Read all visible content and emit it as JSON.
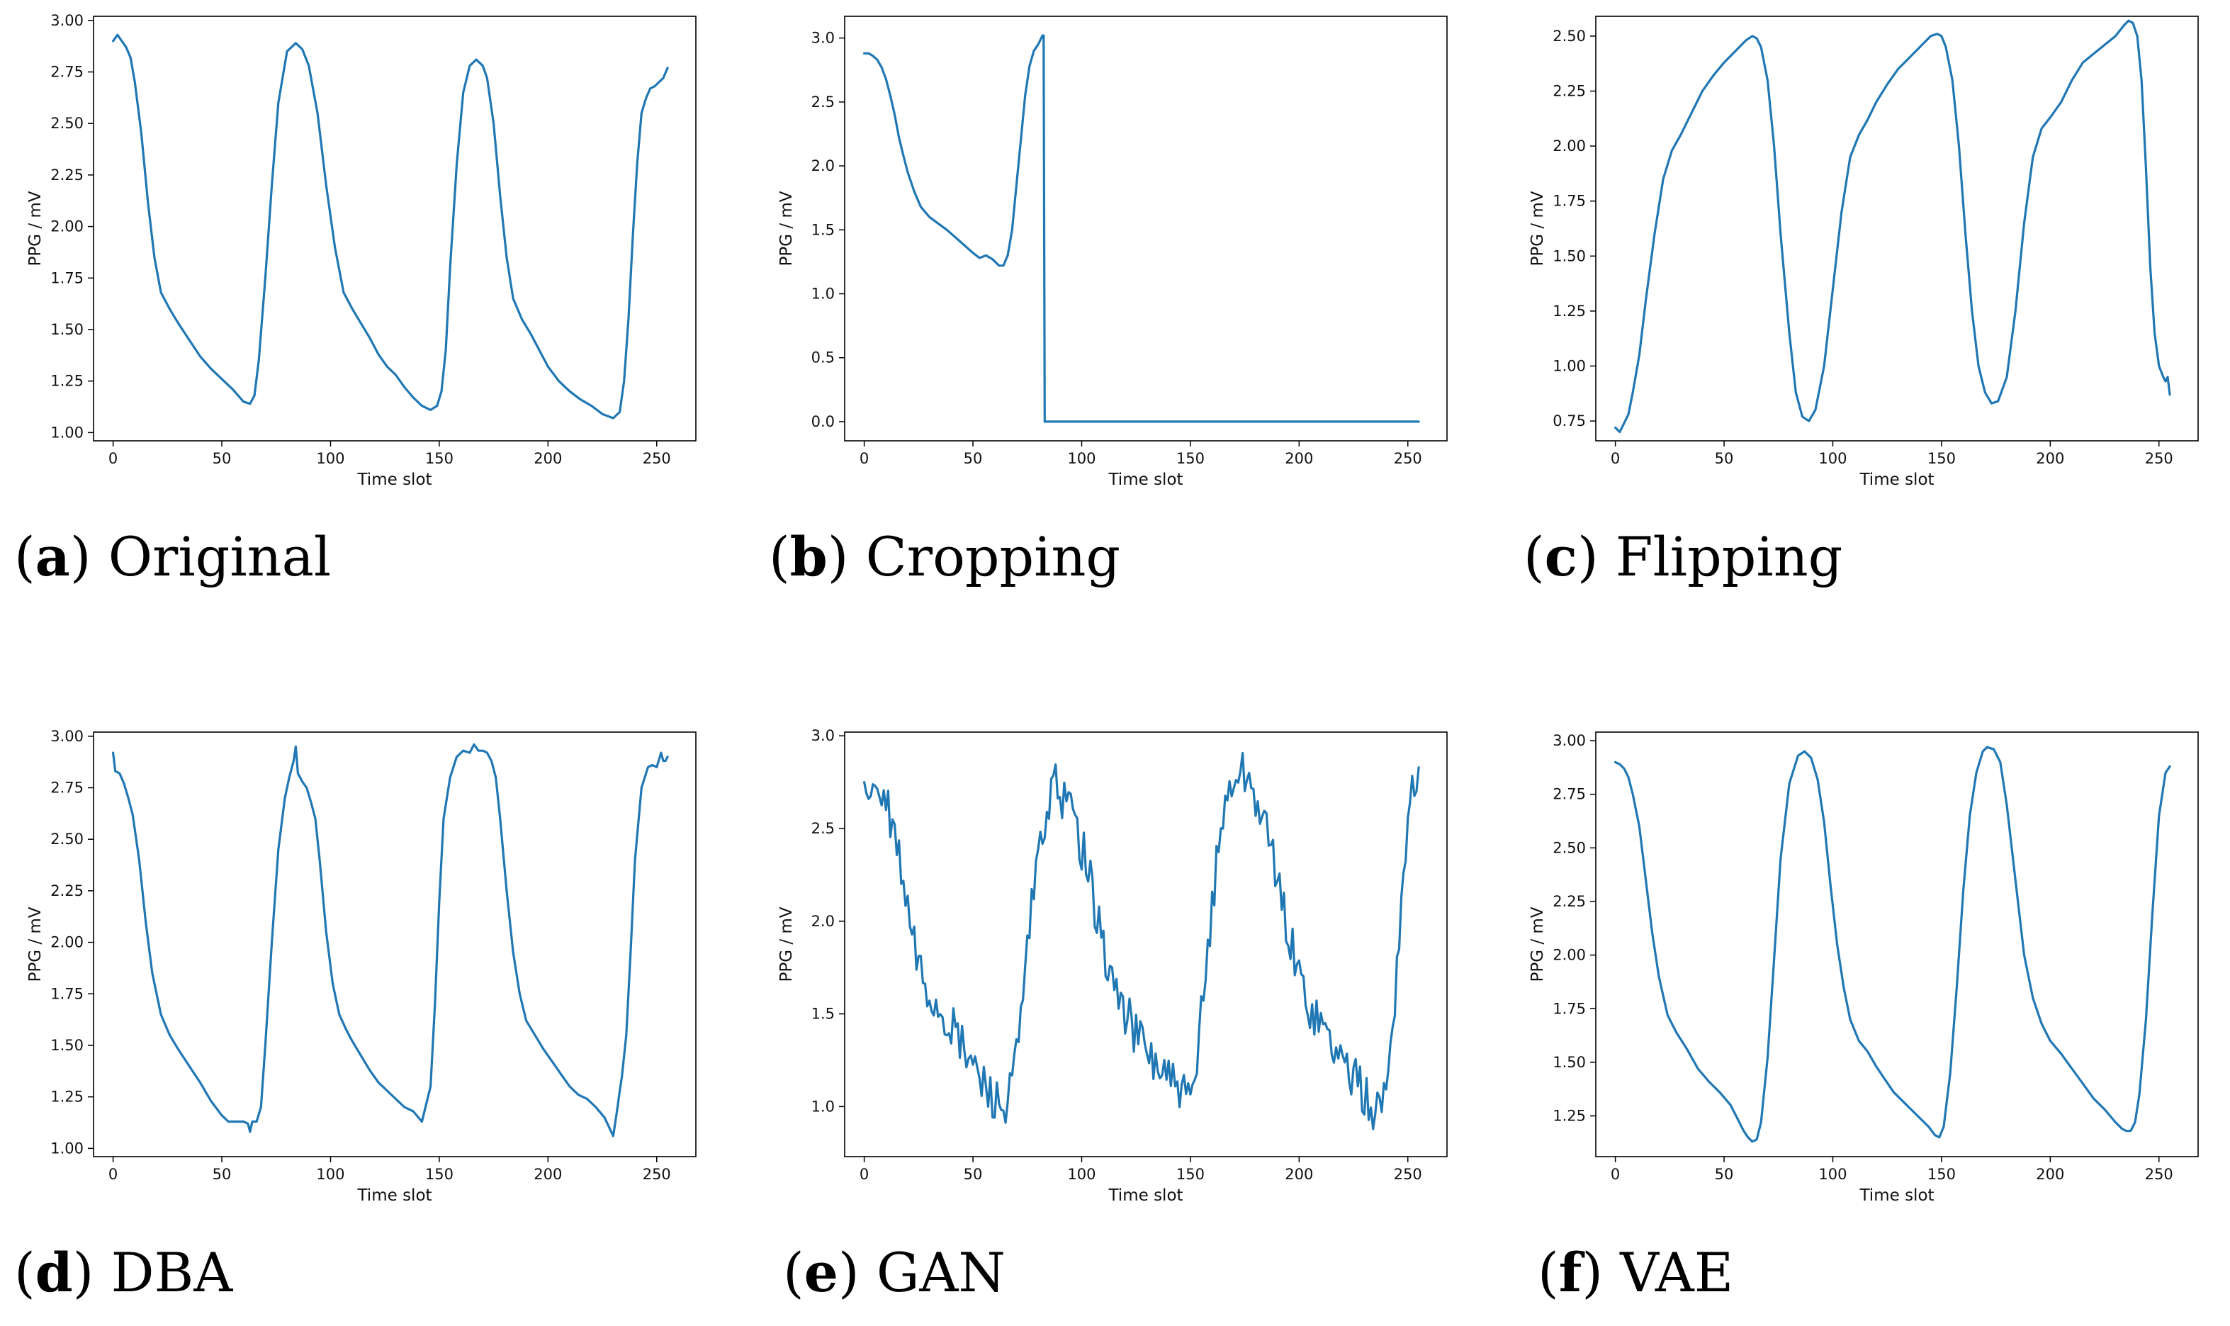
{
  "figure": {
    "series_color": "#1f77b4",
    "panels": [
      {
        "id": "a",
        "caption_letter": "a",
        "caption_text": "Original"
      },
      {
        "id": "b",
        "caption_letter": "b",
        "caption_text": "Cropping"
      },
      {
        "id": "c",
        "caption_letter": "c",
        "caption_text": "Flipping"
      },
      {
        "id": "d",
        "caption_letter": "d",
        "caption_text": "DBA"
      },
      {
        "id": "e",
        "caption_letter": "e",
        "caption_text": "GAN"
      },
      {
        "id": "f",
        "caption_letter": "f",
        "caption_text": "VAE"
      }
    ]
  },
  "chart_data": [
    {
      "id": "a",
      "type": "line",
      "title": "",
      "xlabel": "Time slot",
      "ylabel": "PPG / mV",
      "xlim": [
        -9,
        268
      ],
      "ylim": [
        0.96,
        3.02
      ],
      "xticks": [
        0,
        50,
        100,
        150,
        200,
        250
      ],
      "yticks": [
        1.0,
        1.25,
        1.5,
        1.75,
        2.0,
        2.25,
        2.5,
        2.75,
        3.0
      ],
      "ytick_labels": [
        "1.00",
        "1.25",
        "1.50",
        "1.75",
        "2.00",
        "2.25",
        "2.50",
        "2.75",
        "3.00"
      ],
      "noise": 0,
      "series": [
        {
          "name": "PPG",
          "x": [
            0,
            2,
            4,
            6,
            8,
            10,
            13,
            16,
            19,
            22,
            26,
            30,
            35,
            40,
            45,
            50,
            55,
            60,
            63,
            65,
            67,
            70,
            73,
            76,
            80,
            84,
            87,
            90,
            94,
            98,
            102,
            106,
            110,
            114,
            118,
            122,
            126,
            130,
            134,
            138,
            142,
            146,
            149,
            151,
            153,
            155,
            158,
            161,
            164,
            167,
            170,
            172,
            175,
            178,
            181,
            184,
            188,
            192,
            196,
            200,
            205,
            210,
            215,
            220,
            225,
            230,
            233,
            235,
            237,
            239,
            241,
            243,
            245,
            247,
            249,
            251,
            253,
            255
          ],
          "y": [
            2.9,
            2.93,
            2.9,
            2.87,
            2.82,
            2.7,
            2.45,
            2.12,
            1.85,
            1.68,
            1.6,
            1.53,
            1.45,
            1.37,
            1.31,
            1.26,
            1.21,
            1.15,
            1.14,
            1.18,
            1.35,
            1.75,
            2.2,
            2.6,
            2.85,
            2.89,
            2.86,
            2.78,
            2.55,
            2.2,
            1.9,
            1.68,
            1.6,
            1.53,
            1.46,
            1.38,
            1.32,
            1.28,
            1.22,
            1.17,
            1.13,
            1.11,
            1.13,
            1.2,
            1.4,
            1.8,
            2.3,
            2.65,
            2.78,
            2.81,
            2.78,
            2.72,
            2.5,
            2.15,
            1.85,
            1.65,
            1.55,
            1.48,
            1.4,
            1.32,
            1.25,
            1.2,
            1.16,
            1.13,
            1.09,
            1.07,
            1.1,
            1.25,
            1.55,
            1.95,
            2.3,
            2.55,
            2.62,
            2.67,
            2.68,
            2.7,
            2.72,
            2.77
          ]
        }
      ]
    },
    {
      "id": "b",
      "type": "line",
      "title": "",
      "xlabel": "Time slot",
      "ylabel": "PPG / mV",
      "xlim": [
        -9,
        268
      ],
      "ylim": [
        -0.15,
        3.17
      ],
      "xticks": [
        0,
        50,
        100,
        150,
        200,
        250
      ],
      "yticks": [
        0.0,
        0.5,
        1.0,
        1.5,
        2.0,
        2.5,
        3.0
      ],
      "ytick_labels": [
        "0.0",
        "0.5",
        "1.0",
        "1.5",
        "2.0",
        "2.5",
        "3.0"
      ],
      "noise": 0,
      "series": [
        {
          "name": "PPG",
          "x": [
            0,
            2,
            4,
            6,
            8,
            10,
            12,
            14,
            16,
            18,
            20,
            23,
            26,
            30,
            34,
            38,
            42,
            46,
            50,
            53,
            56,
            59,
            62,
            64,
            66,
            68,
            70,
            72,
            74,
            76,
            78,
            80,
            82,
            82.5,
            83,
            85,
            100,
            150,
            200,
            255
          ],
          "y": [
            2.88,
            2.88,
            2.86,
            2.83,
            2.77,
            2.68,
            2.55,
            2.4,
            2.22,
            2.08,
            1.95,
            1.8,
            1.68,
            1.6,
            1.55,
            1.5,
            1.44,
            1.38,
            1.32,
            1.28,
            1.3,
            1.27,
            1.22,
            1.22,
            1.3,
            1.5,
            1.85,
            2.2,
            2.55,
            2.78,
            2.9,
            2.95,
            3.02,
            3.02,
            0.0,
            0.0,
            0.0,
            0.0,
            0.0,
            0.0
          ]
        }
      ]
    },
    {
      "id": "c",
      "type": "line",
      "title": "",
      "xlabel": "Time slot",
      "ylabel": "PPG / mV",
      "xlim": [
        -9,
        268
      ],
      "ylim": [
        0.66,
        2.59
      ],
      "xticks": [
        0,
        50,
        100,
        150,
        200,
        250
      ],
      "yticks": [
        0.75,
        1.0,
        1.25,
        1.5,
        1.75,
        2.0,
        2.25,
        2.5
      ],
      "ytick_labels": [
        "0.75",
        "1.00",
        "1.25",
        "1.50",
        "1.75",
        "2.00",
        "2.25",
        "2.50"
      ],
      "noise": 0,
      "series": [
        {
          "name": "PPG",
          "x": [
            0,
            2,
            4,
            6,
            8,
            11,
            14,
            18,
            22,
            26,
            30,
            35,
            40,
            45,
            50,
            55,
            60,
            63,
            65,
            67,
            70,
            73,
            76,
            80,
            83,
            86,
            89,
            92,
            96,
            100,
            104,
            108,
            112,
            116,
            120,
            125,
            130,
            135,
            140,
            145,
            148,
            150,
            152,
            155,
            158,
            161,
            164,
            167,
            170,
            173,
            176,
            180,
            184,
            188,
            192,
            196,
            200,
            205,
            210,
            215,
            220,
            225,
            230,
            234,
            236,
            238,
            240,
            242,
            244,
            246,
            248,
            250,
            252,
            253,
            254,
            255
          ],
          "y": [
            0.72,
            0.7,
            0.74,
            0.78,
            0.88,
            1.05,
            1.3,
            1.6,
            1.85,
            1.98,
            2.05,
            2.15,
            2.25,
            2.32,
            2.38,
            2.43,
            2.48,
            2.5,
            2.49,
            2.45,
            2.3,
            2.0,
            1.6,
            1.15,
            0.88,
            0.77,
            0.75,
            0.8,
            1.0,
            1.35,
            1.7,
            1.95,
            2.05,
            2.12,
            2.2,
            2.28,
            2.35,
            2.4,
            2.45,
            2.5,
            2.51,
            2.5,
            2.45,
            2.3,
            2.0,
            1.6,
            1.25,
            1.0,
            0.88,
            0.83,
            0.84,
            0.95,
            1.25,
            1.65,
            1.95,
            2.08,
            2.13,
            2.2,
            2.3,
            2.38,
            2.42,
            2.46,
            2.5,
            2.55,
            2.57,
            2.56,
            2.5,
            2.3,
            1.9,
            1.45,
            1.15,
            1.0,
            0.95,
            0.93,
            0.95,
            0.87
          ]
        }
      ]
    },
    {
      "id": "d",
      "type": "line",
      "title": "",
      "xlabel": "Time slot",
      "ylabel": "PPG / mV",
      "xlim": [
        -9,
        268
      ],
      "ylim": [
        0.96,
        3.02
      ],
      "xticks": [
        0,
        50,
        100,
        150,
        200,
        250
      ],
      "yticks": [
        1.0,
        1.25,
        1.5,
        1.75,
        2.0,
        2.25,
        2.5,
        2.75,
        3.0
      ],
      "ytick_labels": [
        "1.00",
        "1.25",
        "1.50",
        "1.75",
        "2.00",
        "2.25",
        "2.50",
        "2.75",
        "3.00"
      ],
      "noise": 0,
      "series": [
        {
          "name": "PPG",
          "x": [
            0,
            1,
            3,
            5,
            7,
            9,
            12,
            15,
            18,
            22,
            26,
            30,
            35,
            40,
            45,
            50,
            53,
            56,
            58,
            60,
            62,
            63,
            64,
            66,
            68,
            70,
            73,
            76,
            79,
            81,
            83,
            84,
            85,
            87,
            89,
            91,
            93,
            95,
            98,
            101,
            104,
            107,
            110,
            114,
            118,
            122,
            126,
            130,
            134,
            138,
            142,
            146,
            148,
            150,
            152,
            155,
            158,
            161,
            164,
            166,
            168,
            170,
            172,
            174,
            176,
            178,
            181,
            184,
            187,
            190,
            194,
            198,
            202,
            206,
            210,
            214,
            218,
            222,
            226,
            230,
            232,
            233,
            234,
            236,
            238,
            240,
            243,
            246,
            248,
            250,
            252,
            253,
            254,
            255
          ],
          "y": [
            2.92,
            2.83,
            2.82,
            2.77,
            2.7,
            2.62,
            2.4,
            2.1,
            1.85,
            1.65,
            1.55,
            1.48,
            1.4,
            1.32,
            1.23,
            1.16,
            1.13,
            1.13,
            1.13,
            1.13,
            1.12,
            1.08,
            1.13,
            1.13,
            1.2,
            1.5,
            2.0,
            2.45,
            2.7,
            2.8,
            2.88,
            2.95,
            2.82,
            2.78,
            2.75,
            2.68,
            2.6,
            2.4,
            2.05,
            1.8,
            1.65,
            1.58,
            1.52,
            1.45,
            1.38,
            1.32,
            1.28,
            1.24,
            1.2,
            1.18,
            1.13,
            1.3,
            1.7,
            2.2,
            2.6,
            2.8,
            2.9,
            2.93,
            2.92,
            2.96,
            2.93,
            2.93,
            2.92,
            2.88,
            2.8,
            2.6,
            2.25,
            1.95,
            1.75,
            1.62,
            1.55,
            1.48,
            1.42,
            1.36,
            1.3,
            1.26,
            1.24,
            1.2,
            1.15,
            1.06,
            1.2,
            1.28,
            1.35,
            1.55,
            1.95,
            2.4,
            2.75,
            2.85,
            2.86,
            2.85,
            2.92,
            2.88,
            2.88,
            2.9
          ]
        }
      ]
    },
    {
      "id": "e",
      "type": "line",
      "title": "",
      "xlabel": "Time slot",
      "ylabel": "PPG / mV",
      "xlim": [
        -9,
        268
      ],
      "ylim": [
        0.73,
        3.02
      ],
      "xticks": [
        0,
        50,
        100,
        150,
        200,
        250
      ],
      "yticks": [
        1.0,
        1.5,
        2.0,
        2.5,
        3.0
      ],
      "ytick_labels": [
        "1.0",
        "1.5",
        "2.0",
        "2.5",
        "3.0"
      ],
      "noise": 0.13,
      "series": [
        {
          "name": "PPG",
          "x": [
            0,
            5,
            10,
            15,
            20,
            25,
            30,
            35,
            40,
            45,
            50,
            55,
            60,
            65,
            68,
            72,
            76,
            80,
            84,
            88,
            92,
            96,
            100,
            105,
            110,
            115,
            120,
            125,
            130,
            135,
            140,
            145,
            150,
            153,
            156,
            160,
            164,
            168,
            172,
            176,
            180,
            185,
            190,
            195,
            200,
            205,
            210,
            215,
            220,
            225,
            230,
            235,
            238,
            241,
            244,
            247,
            250,
            253,
            255
          ],
          "y": [
            2.7,
            2.68,
            2.62,
            2.4,
            2.05,
            1.75,
            1.6,
            1.52,
            1.42,
            1.32,
            1.22,
            1.12,
            1.05,
            0.98,
            1.1,
            1.45,
            1.95,
            2.35,
            2.6,
            2.72,
            2.66,
            2.58,
            2.4,
            2.15,
            1.85,
            1.65,
            1.5,
            1.4,
            1.3,
            1.22,
            1.15,
            1.08,
            1.0,
            1.2,
            1.6,
            2.1,
            2.5,
            2.72,
            2.82,
            2.78,
            2.68,
            2.48,
            2.2,
            1.95,
            1.7,
            1.55,
            1.45,
            1.35,
            1.25,
            1.15,
            1.05,
            0.98,
            1.0,
            1.2,
            1.6,
            2.1,
            2.55,
            2.75,
            2.8
          ]
        }
      ]
    },
    {
      "id": "f",
      "type": "line",
      "title": "",
      "xlabel": "Time slot",
      "ylabel": "PPG / mV",
      "xlim": [
        -9,
        268
      ],
      "ylim": [
        1.06,
        3.04
      ],
      "xticks": [
        0,
        50,
        100,
        150,
        200,
        250
      ],
      "yticks": [
        1.25,
        1.5,
        1.75,
        2.0,
        2.25,
        2.5,
        2.75,
        3.0
      ],
      "ytick_labels": [
        "1.25",
        "1.50",
        "1.75",
        "2.00",
        "2.25",
        "2.50",
        "2.75",
        "3.00"
      ],
      "noise": 0,
      "series": [
        {
          "name": "PPG",
          "x": [
            0,
            2,
            4,
            6,
            8,
            11,
            14,
            17,
            20,
            24,
            28,
            33,
            38,
            43,
            48,
            53,
            56,
            59,
            61,
            63,
            65,
            67,
            70,
            73,
            76,
            80,
            84,
            87,
            90,
            93,
            96,
            99,
            102,
            105,
            108,
            112,
            116,
            120,
            124,
            128,
            132,
            136,
            140,
            144,
            147,
            149,
            151,
            154,
            157,
            160,
            163,
            166,
            169,
            171,
            174,
            177,
            180,
            184,
            188,
            192,
            196,
            200,
            205,
            210,
            215,
            220,
            225,
            230,
            233,
            235,
            237,
            239,
            241,
            244,
            247,
            250,
            253,
            255
          ],
          "y": [
            2.9,
            2.89,
            2.87,
            2.83,
            2.75,
            2.6,
            2.35,
            2.1,
            1.9,
            1.72,
            1.64,
            1.56,
            1.47,
            1.41,
            1.36,
            1.3,
            1.24,
            1.18,
            1.15,
            1.13,
            1.14,
            1.22,
            1.52,
            1.98,
            2.45,
            2.8,
            2.93,
            2.95,
            2.92,
            2.82,
            2.62,
            2.32,
            2.05,
            1.85,
            1.7,
            1.6,
            1.55,
            1.48,
            1.42,
            1.36,
            1.32,
            1.28,
            1.24,
            1.2,
            1.16,
            1.15,
            1.2,
            1.45,
            1.85,
            2.3,
            2.65,
            2.85,
            2.95,
            2.97,
            2.96,
            2.9,
            2.7,
            2.35,
            2.0,
            1.8,
            1.68,
            1.6,
            1.54,
            1.47,
            1.4,
            1.33,
            1.28,
            1.22,
            1.19,
            1.18,
            1.18,
            1.22,
            1.35,
            1.7,
            2.2,
            2.65,
            2.85,
            2.88
          ]
        }
      ]
    }
  ]
}
